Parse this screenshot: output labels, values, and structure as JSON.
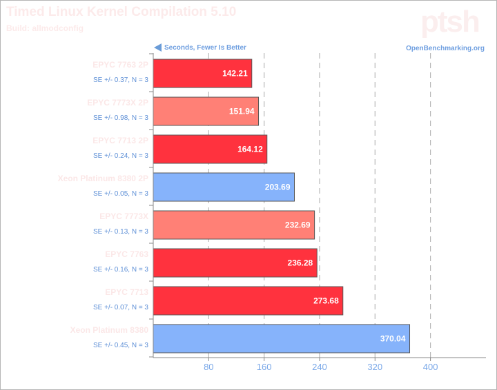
{
  "header": {
    "title": "Timed Linux Kernel Compilation 5.10",
    "subtitle": "Build: allmodconfig",
    "logo_text": "ptsh",
    "direction_label": "Seconds, Fewer Is Better",
    "source_label": "OpenBenchmarking.org"
  },
  "colors": {
    "epyc_bright": "#ff323e",
    "epyc_light": "#ff8076",
    "xeon": "#86b3fb",
    "bar_border": "#555555",
    "grid": "#b8b8b8",
    "axis": "#888888"
  },
  "chart_data": {
    "type": "bar",
    "orientation": "horizontal",
    "title": "Timed Linux Kernel Compilation 5.10",
    "subtitle": "Build: allmodconfig",
    "xlabel": "Seconds, Fewer Is Better",
    "xlim": [
      0,
      480
    ],
    "xticks": [
      80,
      160,
      240,
      320,
      400
    ],
    "grid": true,
    "bars": [
      {
        "label": "EPYC 7763 2P",
        "value": 142.21,
        "se": "SE +/- 0.37, N = 3",
        "color": "#ff323e"
      },
      {
        "label": "EPYC 7773X 2P",
        "value": 151.94,
        "se": "SE +/- 0.98, N = 3",
        "color": "#ff8076"
      },
      {
        "label": "EPYC 7713 2P",
        "value": 164.12,
        "se": "SE +/- 0.24, N = 3",
        "color": "#ff323e"
      },
      {
        "label": "Xeon Platinum 8380 2P",
        "value": 203.69,
        "se": "SE +/- 0.05, N = 3",
        "color": "#86b3fb"
      },
      {
        "label": "EPYC 7773X",
        "value": 232.69,
        "se": "SE +/- 0.13, N = 3",
        "color": "#ff8076"
      },
      {
        "label": "EPYC 7763",
        "value": 236.28,
        "se": "SE +/- 0.16, N = 3",
        "color": "#ff323e"
      },
      {
        "label": "EPYC 7713",
        "value": 273.68,
        "se": "SE +/- 0.07, N = 3",
        "color": "#ff323e"
      },
      {
        "label": "Xeon Platinum 8380",
        "value": 370.04,
        "se": "SE +/- 0.45, N = 3",
        "color": "#86b3fb"
      }
    ]
  }
}
